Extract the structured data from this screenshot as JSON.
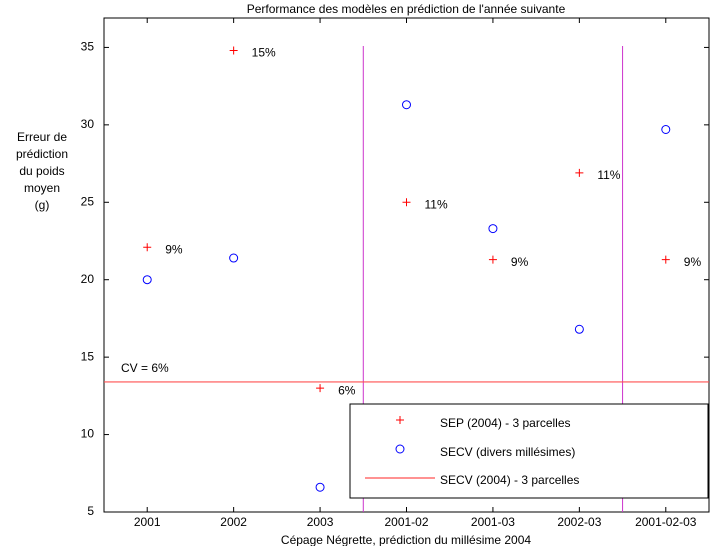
{
  "chart_data": {
    "type": "scatter",
    "title": "Performance des modèles en prédiction de l'année suivante",
    "xlabel": "Cépage Négrette, prédiction du millésime 2004",
    "ylabel": [
      "Erreur de",
      "prédiction",
      "du poids",
      "moyen",
      "(g)"
    ],
    "categories": [
      "2001",
      "2002",
      "2003",
      "2001-02",
      "2001-03",
      "2002-03",
      "2001-02-03"
    ],
    "series": [
      {
        "name": "SEP (2004) - 3 parcelles",
        "color": "#ff0000",
        "marker": "plus",
        "values": [
          22.1,
          34.8,
          13.0,
          25.0,
          21.3,
          26.9,
          21.3
        ],
        "relative_errors": [
          "9%",
          "15%",
          "6%",
          "11%",
          "9%",
          "11%",
          "9%"
        ]
      },
      {
        "name": "SECV (divers millésimes)",
        "color": "#0000ff",
        "marker": "circle",
        "values": [
          20.0,
          21.4,
          6.6,
          31.3,
          23.3,
          16.8,
          29.7
        ]
      }
    ],
    "reference_line": {
      "name": "SECV (2004) - 3 parcelles",
      "value": 13.4,
      "label": "CV = 6%",
      "color": "#ff5050"
    },
    "separators": [
      2.5,
      5.5
    ],
    "separator_color": "#cc33cc",
    "ylim": [
      5,
      36.9
    ],
    "yticks": [
      5,
      10,
      15,
      20,
      25,
      30,
      35
    ]
  }
}
